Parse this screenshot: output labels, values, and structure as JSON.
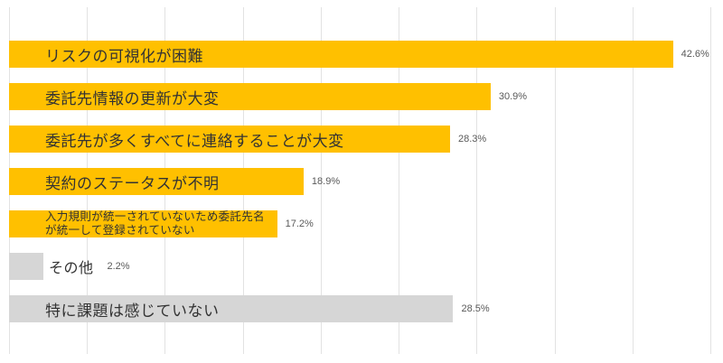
{
  "chart_data": {
    "type": "bar",
    "orientation": "horizontal",
    "title": "",
    "xlabel": "",
    "ylabel": "",
    "xlim": [
      0,
      45
    ],
    "grid": true,
    "grid_step_percent": 5,
    "legend": "none",
    "categories": [
      "リスクの可視化が困難",
      "委託先情報の更新が大変",
      "委託先が多くすべてに連絡することが大変",
      "契約のステータスが不明",
      "入力規則が統一されていないため委託先名\nが統一して登録されていない",
      "その他",
      "特に課題は感じていない"
    ],
    "values": [
      42.6,
      30.9,
      28.3,
      18.9,
      17.2,
      2.2,
      28.5
    ],
    "value_labels": [
      "42.6%",
      "30.9%",
      "28.3%",
      "18.9%",
      "17.2%",
      "2.2%",
      "28.5%"
    ],
    "bar_color_keys": [
      "accent",
      "accent",
      "accent",
      "accent",
      "accent",
      "neutral",
      "neutral"
    ],
    "label_placement": [
      "inside",
      "inside",
      "inside",
      "inside",
      "inside",
      "outside",
      "inside"
    ],
    "label_size": [
      "normal",
      "normal",
      "normal",
      "normal",
      "small",
      "normal",
      "normal"
    ],
    "colors": {
      "accent": "#FFC000",
      "neutral": "#D6D6D6",
      "gridline": "#E2E2E2",
      "label_text": "#333333",
      "value_text": "#595959",
      "background": "#FFFFFF"
    }
  }
}
